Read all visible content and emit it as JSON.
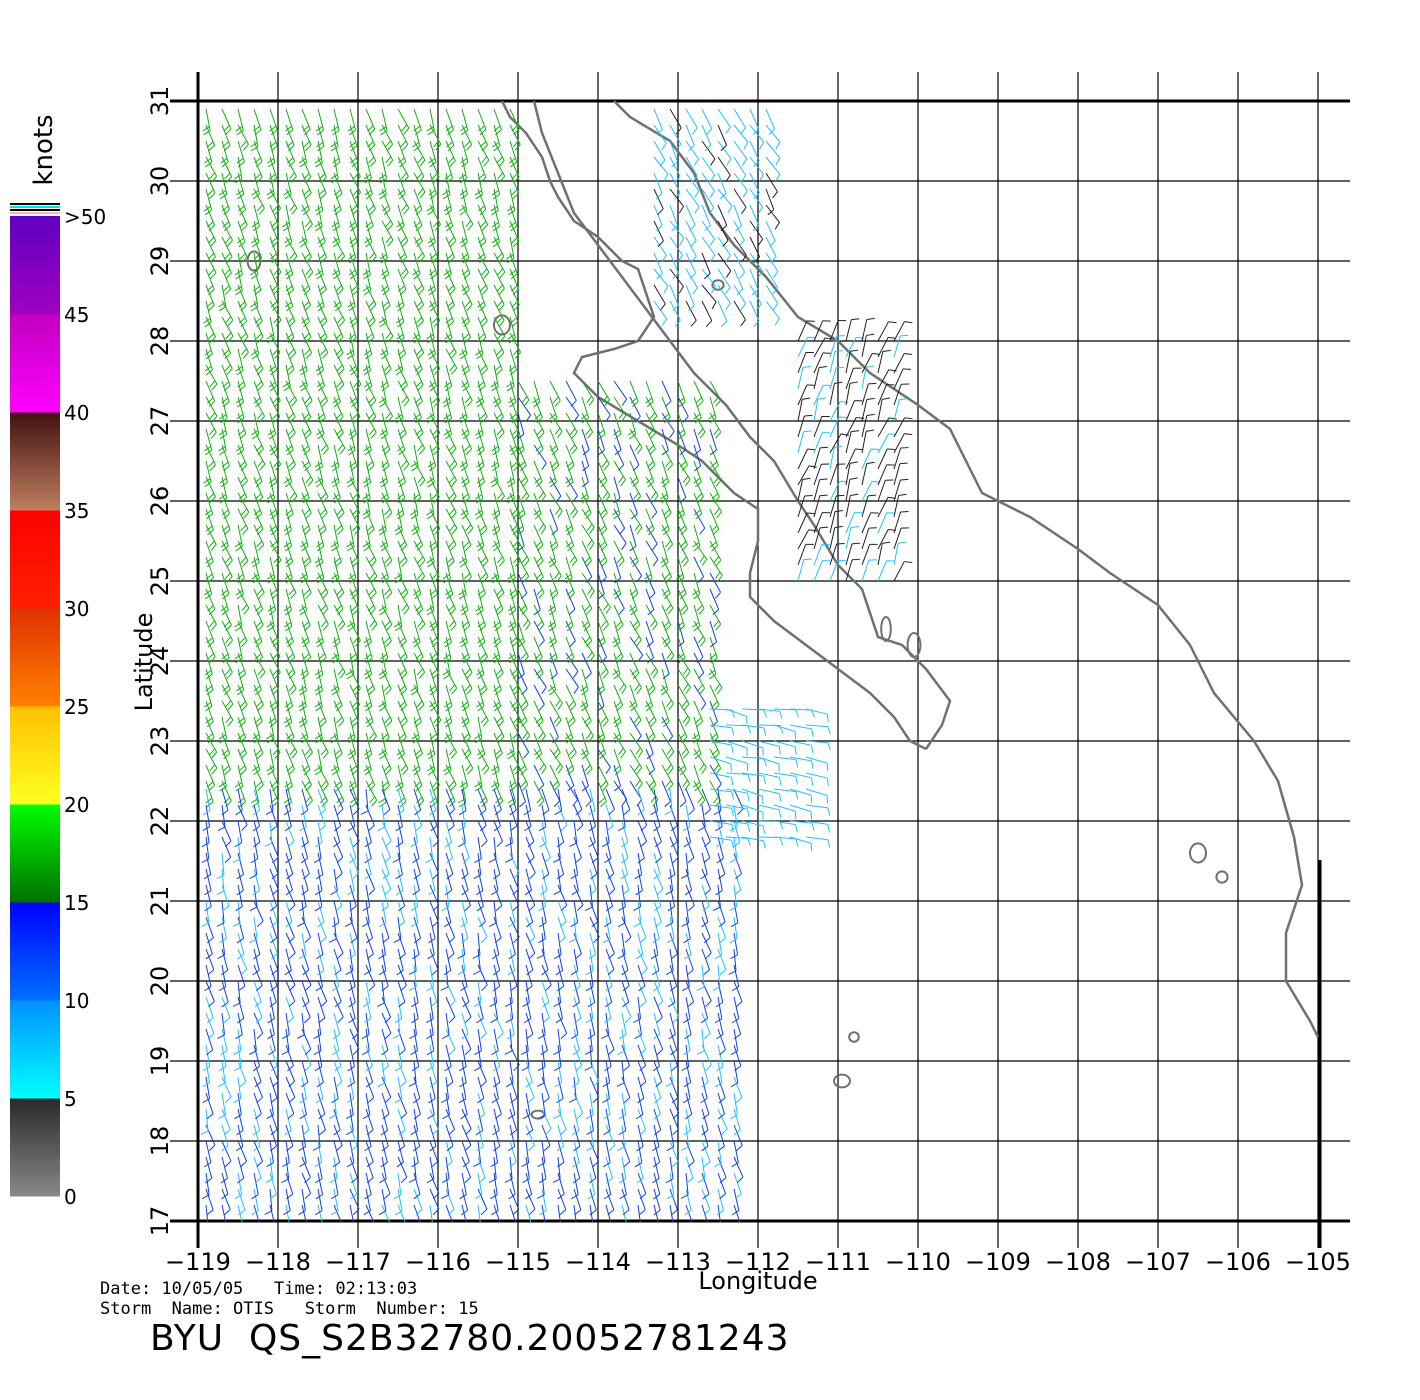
{
  "colorbar": {
    "unit": "knots",
    "tick_labels": [
      "0",
      "5",
      "10",
      "15",
      "20",
      "25",
      "30",
      "35",
      "40",
      "45",
      ">50"
    ],
    "bands": [
      {
        "from": 0,
        "to": 5,
        "colors": [
          "#888888",
          "#2a2a2a"
        ]
      },
      {
        "from": 5,
        "to": 10,
        "colors": [
          "#00ffff",
          "#0090ff"
        ]
      },
      {
        "from": 10,
        "to": 15,
        "colors": [
          "#0070ff",
          "#0000ff"
        ]
      },
      {
        "from": 15,
        "to": 20,
        "colors": [
          "#007000",
          "#00ff00"
        ]
      },
      {
        "from": 20,
        "to": 25,
        "colors": [
          "#ffff20",
          "#ffc000"
        ]
      },
      {
        "from": 25,
        "to": 30,
        "colors": [
          "#ff8000",
          "#e03000"
        ]
      },
      {
        "from": 30,
        "to": 35,
        "colors": [
          "#ff2000",
          "#ff0000"
        ]
      },
      {
        "from": 35,
        "to": 40,
        "colors": [
          "#c08060",
          "#401010"
        ]
      },
      {
        "from": 40,
        "to": 45,
        "colors": [
          "#ff00ff",
          "#c000c0"
        ]
      },
      {
        "from": 45,
        "to": 50,
        "colors": [
          "#a000c0",
          "#6000c0"
        ]
      }
    ]
  },
  "axes": {
    "xlabel": "Longitude",
    "ylabel": "Latitude",
    "lon_ticks": [
      -119,
      -118,
      -117,
      -116,
      -115,
      -114,
      -113,
      -112,
      -111,
      -110,
      -109,
      -108,
      -107,
      -106,
      -105
    ],
    "lat_ticks": [
      17,
      18,
      19,
      20,
      21,
      22,
      23,
      24,
      25,
      26,
      27,
      28,
      29,
      30,
      31
    ],
    "lon_range": [
      -119,
      -105
    ],
    "lat_range": [
      17,
      31
    ]
  },
  "info": {
    "date_line": "Date: 10/05/05   Time: 02:13:03",
    "storm_line": "Storm  Name: OTIS   Storm  Number: 15",
    "product": "BYU  QS_S2B32780.20052781243"
  },
  "coastline": {
    "baja_pacific": [
      [
        -115.2,
        31.0
      ],
      [
        -115.1,
        30.8
      ],
      [
        -114.9,
        30.6
      ],
      [
        -114.7,
        30.3
      ],
      [
        -114.6,
        30.0
      ],
      [
        -114.5,
        29.8
      ],
      [
        -114.3,
        29.5
      ],
      [
        -114.0,
        29.3
      ],
      [
        -113.7,
        29.0
      ],
      [
        -113.5,
        28.9
      ],
      [
        -113.4,
        28.6
      ],
      [
        -113.3,
        28.3
      ],
      [
        -113.5,
        28.0
      ],
      [
        -113.8,
        27.9
      ],
      [
        -114.2,
        27.8
      ],
      [
        -114.3,
        27.6
      ],
      [
        -114.0,
        27.3
      ],
      [
        -113.5,
        27.0
      ],
      [
        -113.0,
        26.7
      ],
      [
        -112.7,
        26.5
      ],
      [
        -112.3,
        26.1
      ],
      [
        -112.0,
        25.9
      ],
      [
        -112.0,
        25.5
      ],
      [
        -112.1,
        25.1
      ],
      [
        -112.1,
        24.8
      ],
      [
        -111.8,
        24.5
      ],
      [
        -111.4,
        24.2
      ],
      [
        -111.0,
        23.9
      ],
      [
        -110.6,
        23.6
      ],
      [
        -110.3,
        23.3
      ],
      [
        -110.1,
        23.0
      ],
      [
        -109.9,
        22.9
      ]
    ],
    "baja_gulf": [
      [
        -109.9,
        22.9
      ],
      [
        -109.7,
        23.2
      ],
      [
        -109.6,
        23.5
      ],
      [
        -109.9,
        23.9
      ],
      [
        -110.2,
        24.2
      ],
      [
        -110.5,
        24.3
      ],
      [
        -110.7,
        24.9
      ],
      [
        -111.0,
        25.2
      ],
      [
        -111.3,
        25.7
      ],
      [
        -111.5,
        26.0
      ],
      [
        -111.8,
        26.5
      ],
      [
        -112.1,
        26.8
      ],
      [
        -112.4,
        27.2
      ],
      [
        -112.8,
        27.6
      ],
      [
        -113.1,
        28.0
      ],
      [
        -113.4,
        28.4
      ],
      [
        -113.7,
        28.8
      ],
      [
        -114.0,
        29.2
      ],
      [
        -114.3,
        29.6
      ],
      [
        -114.5,
        30.1
      ],
      [
        -114.7,
        30.6
      ],
      [
        -114.8,
        31.0
      ]
    ],
    "mainland": [
      [
        -113.8,
        31.0
      ],
      [
        -113.6,
        30.8
      ],
      [
        -113.1,
        30.5
      ],
      [
        -112.8,
        30.1
      ],
      [
        -112.6,
        29.6
      ],
      [
        -112.3,
        29.2
      ],
      [
        -111.9,
        28.8
      ],
      [
        -111.5,
        28.3
      ],
      [
        -111.0,
        28.0
      ],
      [
        -110.6,
        27.6
      ],
      [
        -110.0,
        27.2
      ],
      [
        -109.6,
        26.9
      ],
      [
        -109.4,
        26.5
      ],
      [
        -109.2,
        26.1
      ],
      [
        -108.6,
        25.8
      ],
      [
        -108.0,
        25.4
      ],
      [
        -107.6,
        25.1
      ],
      [
        -107.0,
        24.7
      ],
      [
        -106.6,
        24.2
      ],
      [
        -106.3,
        23.6
      ],
      [
        -105.8,
        23.0
      ],
      [
        -105.5,
        22.5
      ],
      [
        -105.3,
        21.8
      ],
      [
        -105.2,
        21.2
      ],
      [
        -105.4,
        20.6
      ],
      [
        -105.4,
        20.0
      ],
      [
        -105.1,
        19.5
      ],
      [
        -105.0,
        19.3
      ]
    ],
    "islands": [
      {
        "lon": -118.3,
        "lat": 29.0,
        "rx": 0.08,
        "ry": 0.12
      },
      {
        "lon": -115.2,
        "lat": 28.2,
        "rx": 0.1,
        "ry": 0.12
      },
      {
        "lon": -114.75,
        "lat": 18.33,
        "rx": 0.08,
        "ry": 0.05
      },
      {
        "lon": -110.95,
        "lat": 18.75,
        "rx": 0.1,
        "ry": 0.08
      },
      {
        "lon": -110.8,
        "lat": 19.3,
        "rx": 0.06,
        "ry": 0.06
      },
      {
        "lon": -106.5,
        "lat": 21.6,
        "rx": 0.1,
        "ry": 0.12
      },
      {
        "lon": -106.2,
        "lat": 21.3,
        "rx": 0.07,
        "ry": 0.07
      },
      {
        "lon": -110.05,
        "lat": 24.2,
        "rx": 0.08,
        "ry": 0.15
      },
      {
        "lon": -110.4,
        "lat": 24.4,
        "rx": 0.06,
        "ry": 0.15
      },
      {
        "lon": -112.5,
        "lat": 28.7,
        "rx": 0.07,
        "ry": 0.06
      }
    ]
  },
  "wind_field": {
    "regions": [
      {
        "lon": [
          -118.9,
          -115.0
        ],
        "lat": [
          22.5,
          31.0
        ],
        "speed": 17,
        "dir_deg": 160
      },
      {
        "lon": [
          -115.0,
          -112.5
        ],
        "lat": [
          22.5,
          27.5
        ],
        "speed": 16,
        "dir_deg": 155
      },
      {
        "lon": [
          -118.9,
          -112.2
        ],
        "lat": [
          17.2,
          22.5
        ],
        "speed": 11,
        "dir_deg": 165
      },
      {
        "lon": [
          -112.6,
          -111.2
        ],
        "lat": [
          21.8,
          23.5
        ],
        "speed": 7,
        "dir_deg": 100
      },
      {
        "lon": [
          -113.3,
          -111.8
        ],
        "lat": [
          28.5,
          31.0
        ],
        "speed": 6,
        "dir_deg": 150
      },
      {
        "lon": [
          -111.5,
          -110.2
        ],
        "lat": [
          25.0,
          28.0
        ],
        "speed": 4,
        "dir_deg": 20
      }
    ]
  }
}
